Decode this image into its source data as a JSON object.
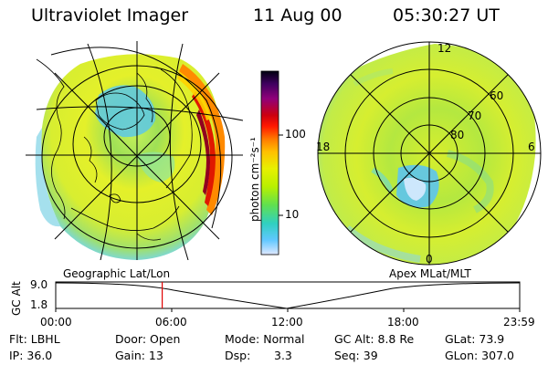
{
  "header": {
    "title": "Ultraviolet Imager",
    "date": "11 Aug 00",
    "time": "05:30:27 UT"
  },
  "panels": {
    "left_label": "Geographic Lat/Lon",
    "right_label": "Apex  MLat/MLT"
  },
  "colorbar": {
    "label": "photon cm⁻²s⁻¹",
    "ticks": [
      "100",
      "10"
    ],
    "colors": [
      "#000010",
      "#400060",
      "#90007a",
      "#cc0010",
      "#ff1800",
      "#ff7a00",
      "#ffc000",
      "#e8f000",
      "#b8f000",
      "#60e050",
      "#30d0c0",
      "#60c8ff",
      "#e0e8ff"
    ]
  },
  "mlt_grid": {
    "lat_labels": [
      "60",
      "70",
      "80"
    ],
    "mlt_labels": [
      "12",
      "18",
      "6",
      "0"
    ]
  },
  "gc_alt_plot": {
    "ylabel": "GC Alt",
    "y_ticks": [
      "9.0",
      "1.8"
    ],
    "x_ticks": [
      "00:00",
      "06:00",
      "12:00",
      "18:00",
      "23:59"
    ],
    "current_time_frac": 0.2295
  },
  "status": {
    "flt": "Flt: LBHL",
    "ip": "IP: 36.0",
    "door": "Door: Open",
    "gain": "Gain: 13",
    "mode": "Mode: Normal",
    "dsp_label": "Dsp:",
    "dsp_value": "3.3",
    "gc_alt": "GC Alt: 8.8 Re",
    "seq": "Seq: 39",
    "glat": "GLat:  73.9",
    "glon": "GLon: 307.0"
  }
}
